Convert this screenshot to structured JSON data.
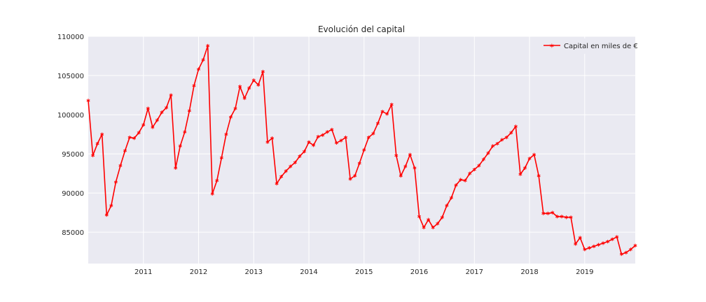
{
  "chart_data": {
    "type": "line",
    "title": "Evolución del capital",
    "xlabel": "",
    "ylabel": "",
    "grid": true,
    "legend_position": "top-right",
    "xlim": [
      "2010-01",
      "2019-12"
    ],
    "ylim": [
      81000,
      110000
    ],
    "x_ticks": [
      "2011",
      "2012",
      "2013",
      "2014",
      "2015",
      "2016",
      "2017",
      "2018",
      "2019"
    ],
    "y_ticks": [
      85000,
      90000,
      95000,
      100000,
      105000,
      110000
    ],
    "y_tick_labels": [
      "85000",
      "90000",
      "95000",
      "100000",
      "105000",
      "110000"
    ],
    "series": [
      {
        "name": "Capital en miles de €",
        "color": "#ff0000",
        "marker": "star",
        "x": [
          "2010-01",
          "2010-02",
          "2010-03",
          "2010-04",
          "2010-05",
          "2010-06",
          "2010-07",
          "2010-08",
          "2010-09",
          "2010-10",
          "2010-11",
          "2010-12",
          "2011-01",
          "2011-02",
          "2011-03",
          "2011-04",
          "2011-05",
          "2011-06",
          "2011-07",
          "2011-08",
          "2011-09",
          "2011-10",
          "2011-11",
          "2011-12",
          "2012-01",
          "2012-02",
          "2012-03",
          "2012-04",
          "2012-05",
          "2012-06",
          "2012-07",
          "2012-08",
          "2012-09",
          "2012-10",
          "2012-11",
          "2012-12",
          "2013-01",
          "2013-02",
          "2013-03",
          "2013-04",
          "2013-05",
          "2013-06",
          "2013-07",
          "2013-08",
          "2013-09",
          "2013-10",
          "2013-11",
          "2013-12",
          "2014-01",
          "2014-02",
          "2014-03",
          "2014-04",
          "2014-05",
          "2014-06",
          "2014-07",
          "2014-08",
          "2014-09",
          "2014-10",
          "2014-11",
          "2014-12",
          "2015-01",
          "2015-02",
          "2015-03",
          "2015-04",
          "2015-05",
          "2015-06",
          "2015-07",
          "2015-08",
          "2015-09",
          "2015-10",
          "2015-11",
          "2015-12",
          "2016-01",
          "2016-02",
          "2016-03",
          "2016-04",
          "2016-05",
          "2016-06",
          "2016-07",
          "2016-08",
          "2016-09",
          "2016-10",
          "2016-11",
          "2016-12",
          "2017-01",
          "2017-02",
          "2017-03",
          "2017-04",
          "2017-05",
          "2017-06",
          "2017-07",
          "2017-08",
          "2017-09",
          "2017-10",
          "2017-11",
          "2017-12",
          "2018-01",
          "2018-02",
          "2018-03",
          "2018-04",
          "2018-05",
          "2018-06",
          "2018-07",
          "2018-08",
          "2018-09",
          "2018-10",
          "2018-11",
          "2018-12",
          "2019-01",
          "2019-02",
          "2019-03",
          "2019-04",
          "2019-05",
          "2019-06",
          "2019-07",
          "2019-08",
          "2019-09",
          "2019-10",
          "2019-11",
          "2019-12"
        ],
        "y": [
          101800,
          94800,
          96300,
          97500,
          87200,
          88400,
          91400,
          93500,
          95400,
          97100,
          97000,
          97700,
          98700,
          100800,
          98400,
          99300,
          100300,
          100900,
          102500,
          93200,
          96000,
          97800,
          100500,
          103700,
          105800,
          107000,
          108800,
          89900,
          91600,
          94500,
          97500,
          99700,
          100800,
          103600,
          102100,
          103400,
          104400,
          103800,
          105500,
          96500,
          97000,
          91200,
          92100,
          92800,
          93400,
          93900,
          94700,
          95300,
          96500,
          96100,
          97200,
          97400,
          97800,
          98100,
          96400,
          96700,
          97100,
          91800,
          92200,
          93800,
          95500,
          97100,
          97600,
          98900,
          100400,
          100100,
          101300,
          94800,
          92200,
          93400,
          94900,
          93200,
          87000,
          85600,
          86600,
          85600,
          86100,
          86900,
          88400,
          89400,
          91000,
          91700,
          91600,
          92500,
          93000,
          93500,
          94300,
          95100,
          96000,
          96300,
          96800,
          97100,
          97700,
          98500,
          92400,
          93200,
          94400,
          94900,
          92200,
          87400,
          87400,
          87500,
          87000,
          87000,
          86900,
          86900,
          83500,
          84300,
          82800,
          83000,
          83200,
          83400,
          83600,
          83800,
          84100,
          84400,
          82200,
          82400,
          82800,
          83300
        ]
      }
    ]
  }
}
